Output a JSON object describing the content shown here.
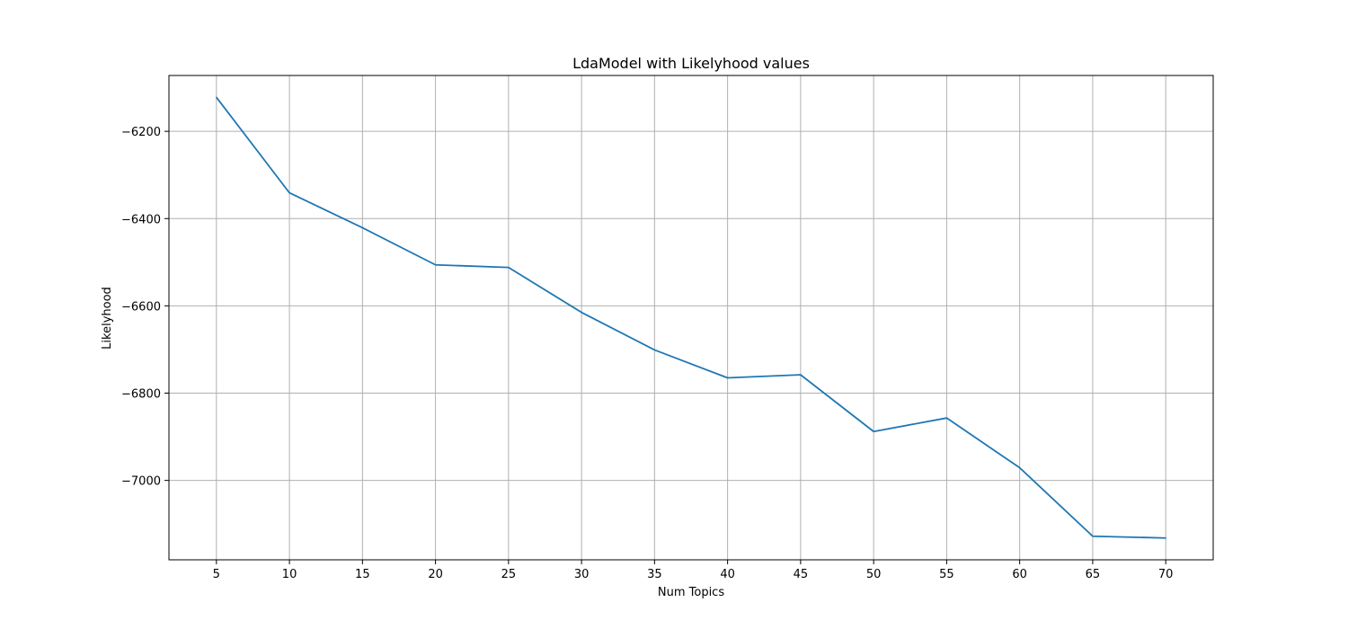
{
  "chart_data": {
    "type": "line",
    "title": "LdaModel with Likelyhood values",
    "xlabel": "Num Topics",
    "ylabel": "Likelyhood",
    "x": [
      5,
      10,
      15,
      20,
      25,
      30,
      35,
      40,
      45,
      50,
      55,
      60,
      65,
      70
    ],
    "series": [
      {
        "values": [
          -6122,
          -6341,
          -6421,
          -6506,
          -6512,
          -6615,
          -6701,
          -6765,
          -6758,
          -6888,
          -6857,
          -6971,
          -7128,
          -7132
        ]
      }
    ],
    "xticks": [
      5,
      10,
      15,
      20,
      25,
      30,
      35,
      40,
      45,
      50,
      55,
      60,
      65,
      70
    ],
    "xtick_labels": [
      "5",
      "10",
      "15",
      "20",
      "25",
      "30",
      "35",
      "40",
      "45",
      "50",
      "55",
      "60",
      "65",
      "70"
    ],
    "yticks": [
      -6200,
      -6400,
      -6600,
      -6800,
      -7000
    ],
    "ytick_labels": [
      "−6200",
      "−6400",
      "−6600",
      "−6800",
      "−7000"
    ],
    "xlim": [
      1.75,
      73.25
    ],
    "ylim": [
      -7182,
      -6072
    ],
    "grid": true,
    "line_color": "#1f77b4",
    "grid_color": "#b0b0b0"
  }
}
